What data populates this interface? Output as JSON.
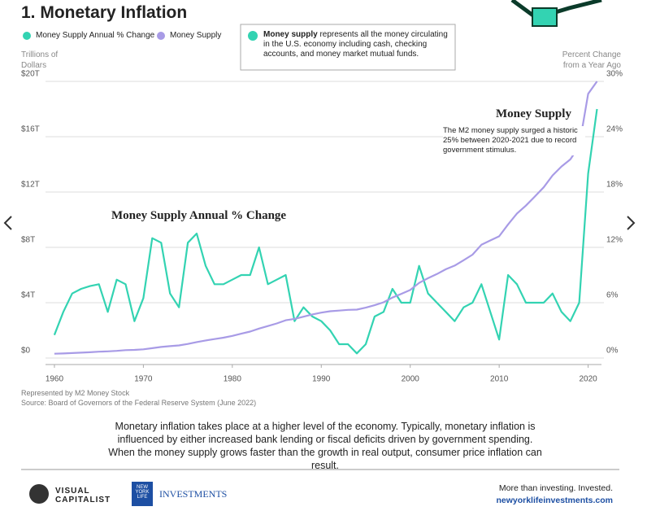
{
  "chart_data": {
    "type": "line",
    "title": "1. Monetary Inflation",
    "info_bold": "Money supply",
    "info_text": " represents all the money circulating in the U.S. economy including cash, checking accounts, and money market mutual funds.",
    "y_axis_label": "Trillions of Dollars",
    "y2_axis_label": "Percent Change from a Year Ago",
    "x": [
      1960,
      1961,
      1962,
      1963,
      1964,
      1965,
      1966,
      1967,
      1968,
      1969,
      1970,
      1971,
      1972,
      1973,
      1974,
      1975,
      1976,
      1977,
      1978,
      1979,
      1980,
      1981,
      1982,
      1983,
      1984,
      1985,
      1986,
      1987,
      1988,
      1989,
      1990,
      1991,
      1992,
      1993,
      1994,
      1995,
      1996,
      1997,
      1998,
      1999,
      2000,
      2001,
      2002,
      2003,
      2004,
      2005,
      2006,
      2007,
      2008,
      2009,
      2010,
      2011,
      2012,
      2013,
      2014,
      2015,
      2016,
      2017,
      2018,
      2019,
      2020,
      2021
    ],
    "series": [
      {
        "name": "Money Supply Annual % Change",
        "color": "#33d3b2",
        "axis": "y2",
        "values": [
          2.5,
          5,
          7,
          7.5,
          7.8,
          8,
          5,
          8.5,
          8,
          4,
          6.5,
          13,
          12.5,
          7,
          5.5,
          12.5,
          13.5,
          10,
          8,
          8,
          8.5,
          9,
          9,
          12,
          8,
          8.5,
          9,
          4,
          5.5,
          4.5,
          4,
          3,
          1.5,
          1.5,
          0.5,
          1.5,
          4.5,
          5,
          7.5,
          6,
          6,
          10,
          7,
          6,
          5,
          4,
          5.5,
          6,
          8,
          5,
          2,
          9,
          8,
          6,
          6,
          6,
          7,
          5,
          4,
          6,
          20,
          27
        ]
      },
      {
        "name": "Money Supply",
        "color": "#a89be6",
        "values": [
          0.31,
          0.33,
          0.36,
          0.39,
          0.42,
          0.46,
          0.48,
          0.52,
          0.57,
          0.59,
          0.63,
          0.71,
          0.8,
          0.86,
          0.91,
          1.02,
          1.15,
          1.27,
          1.37,
          1.47,
          1.6,
          1.76,
          1.91,
          2.13,
          2.31,
          2.5,
          2.73,
          2.83,
          2.99,
          3.15,
          3.28,
          3.38,
          3.43,
          3.48,
          3.5,
          3.64,
          3.82,
          4.03,
          4.37,
          4.64,
          4.92,
          5.43,
          5.77,
          6.07,
          6.42,
          6.68,
          7.07,
          7.47,
          8.19,
          8.5,
          8.8,
          9.66,
          10.45,
          11.02,
          11.67,
          12.34,
          13.2,
          13.85,
          14.36,
          15.32,
          19.1,
          20
        ]
      }
    ],
    "xlim": [
      1959,
      2021.5
    ],
    "xticks": [
      1960,
      1970,
      1980,
      1990,
      2000,
      2010,
      2020
    ],
    "ylim": [
      0,
      20
    ],
    "yticks": [
      {
        "value": 0,
        "label": "$0"
      },
      {
        "value": 4,
        "label": "$4T"
      },
      {
        "value": 8,
        "label": "$8T"
      },
      {
        "value": 12,
        "label": "$12T"
      },
      {
        "value": 16,
        "label": "$16T"
      },
      {
        "value": 20,
        "label": "$20T"
      }
    ],
    "y2lim": [
      0,
      30
    ],
    "y2ticks": [
      {
        "value": 0,
        "label": "0%"
      },
      {
        "value": 6,
        "label": "6%"
      },
      {
        "value": 12,
        "label": "12%"
      },
      {
        "value": 18,
        "label": "18%"
      },
      {
        "value": 24,
        "label": "24%"
      },
      {
        "value": 30,
        "label": "30%"
      }
    ],
    "grid": true,
    "annotations": [
      {
        "title": "Money Supply Annual % Change"
      },
      {
        "title": "Money Supply",
        "text": "The M2 money supply surged a historic 25% between 2020-2021 due to record government stimulus."
      }
    ]
  },
  "notes": [
    "Represented by M2 Money Stock",
    "Source: Board of Governors of the Federal Reserve System (June 2022)"
  ],
  "description": "Monetary inflation takes place at a higher level of the economy. Typically, monetary inflation is influenced by either increased bank lending or fiscal deficits driven by government spending. When the money supply grows faster than the growth in real output, consumer price inflation can result.",
  "footer": {
    "brand1": "VISUAL CAPITALIST",
    "brand2": "NEW YORK LIFE",
    "brand3": "INVESTMENTS",
    "tagline": "More than investing. Invested.",
    "url": "newyorklifeinvestments.com"
  }
}
